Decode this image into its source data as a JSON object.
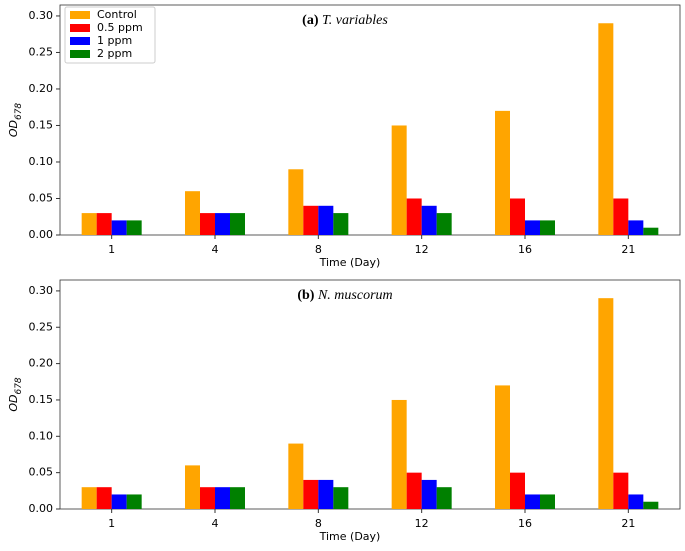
{
  "chart_data": [
    {
      "type": "bar",
      "panel": "(a)",
      "title": "T. variables",
      "ylabel": "OD",
      "ylabel_sub": "678",
      "xlabel": "Time (Day)",
      "categories": [
        "1",
        "4",
        "8",
        "12",
        "16",
        "21"
      ],
      "series": [
        {
          "name": "Control",
          "color": "#ffa500",
          "values": [
            0.03,
            0.06,
            0.09,
            0.15,
            0.17,
            0.29
          ]
        },
        {
          "name": "0.5 ppm",
          "color": "#ff0000",
          "values": [
            0.03,
            0.03,
            0.04,
            0.05,
            0.05,
            0.05
          ]
        },
        {
          "name": "1 ppm",
          "color": "#0000ff",
          "values": [
            0.02,
            0.03,
            0.04,
            0.04,
            0.02,
            0.02
          ]
        },
        {
          "name": "2 ppm",
          "color": "#008000",
          "values": [
            0.02,
            0.03,
            0.03,
            0.03,
            0.02,
            0.01
          ]
        }
      ],
      "ylim": [
        0,
        0.315
      ],
      "yticks": [
        {
          "value": 0,
          "label": "0.00"
        },
        {
          "value": 0.05,
          "label": "0.05"
        },
        {
          "value": 0.1,
          "label": "0.10"
        },
        {
          "value": 0.15,
          "label": "0.15"
        },
        {
          "value": 0.2,
          "label": "0.20"
        },
        {
          "value": 0.25,
          "label": "0.25"
        },
        {
          "value": 0.3,
          "label": "0.30"
        }
      ],
      "legend": "upper left"
    },
    {
      "type": "bar",
      "panel": "(b)",
      "title": "N. muscorum",
      "ylabel": "OD",
      "ylabel_sub": "678",
      "xlabel": "Time (Day)",
      "categories": [
        "1",
        "4",
        "8",
        "12",
        "16",
        "21"
      ],
      "series": [
        {
          "color": "#ffa500",
          "values": [
            0.03,
            0.06,
            0.09,
            0.15,
            0.17,
            0.29
          ]
        },
        {
          "color": "#ff0000",
          "values": [
            0.03,
            0.03,
            0.04,
            0.05,
            0.05,
            0.05
          ]
        },
        {
          "color": "#0000ff",
          "values": [
            0.02,
            0.03,
            0.04,
            0.04,
            0.02,
            0.02
          ]
        },
        {
          "color": "#008000",
          "values": [
            0.02,
            0.03,
            0.03,
            0.03,
            0.02,
            0.01
          ]
        }
      ],
      "ylim": [
        0,
        0.315
      ],
      "yticks": [
        {
          "value": 0,
          "label": "0.00"
        },
        {
          "value": 0.05,
          "label": "0.05"
        },
        {
          "value": 0.1,
          "label": "0.10"
        },
        {
          "value": 0.15,
          "label": "0.15"
        },
        {
          "value": 0.2,
          "label": "0.20"
        },
        {
          "value": 0.25,
          "label": "0.25"
        },
        {
          "value": 0.3,
          "label": "0.30"
        }
      ]
    }
  ]
}
